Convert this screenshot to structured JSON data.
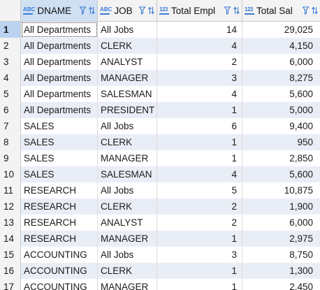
{
  "columns": {
    "dname": {
      "label": "DNAME",
      "type_badge": "ABC"
    },
    "job": {
      "label": "JOB",
      "type_badge": "ABC"
    },
    "total_emp": {
      "label": "Total Empl",
      "type_badge": "123"
    },
    "total_sal": {
      "label": "Total Sal",
      "type_badge": "123"
    }
  },
  "rows": [
    {
      "num": "1",
      "dname": "All Departments",
      "job": "All Jobs",
      "total_emp": "14",
      "total_sal": "29,025"
    },
    {
      "num": "2",
      "dname": "All Departments",
      "job": "CLERK",
      "total_emp": "4",
      "total_sal": "4,150"
    },
    {
      "num": "3",
      "dname": "All Departments",
      "job": "ANALYST",
      "total_emp": "2",
      "total_sal": "6,000"
    },
    {
      "num": "4",
      "dname": "All Departments",
      "job": "MANAGER",
      "total_emp": "3",
      "total_sal": "8,275"
    },
    {
      "num": "5",
      "dname": "All Departments",
      "job": "SALESMAN",
      "total_emp": "4",
      "total_sal": "5,600"
    },
    {
      "num": "6",
      "dname": "All Departments",
      "job": "PRESIDENT",
      "total_emp": "1",
      "total_sal": "5,000"
    },
    {
      "num": "7",
      "dname": "SALES",
      "job": "All Jobs",
      "total_emp": "6",
      "total_sal": "9,400"
    },
    {
      "num": "8",
      "dname": "SALES",
      "job": "CLERK",
      "total_emp": "1",
      "total_sal": "950"
    },
    {
      "num": "9",
      "dname": "SALES",
      "job": "MANAGER",
      "total_emp": "1",
      "total_sal": "2,850"
    },
    {
      "num": "10",
      "dname": "SALES",
      "job": "SALESMAN",
      "total_emp": "4",
      "total_sal": "5,600"
    },
    {
      "num": "11",
      "dname": "RESEARCH",
      "job": "All Jobs",
      "total_emp": "5",
      "total_sal": "10,875"
    },
    {
      "num": "12",
      "dname": "RESEARCH",
      "job": "CLERK",
      "total_emp": "2",
      "total_sal": "1,900"
    },
    {
      "num": "13",
      "dname": "RESEARCH",
      "job": "ANALYST",
      "total_emp": "2",
      "total_sal": "6,000"
    },
    {
      "num": "14",
      "dname": "RESEARCH",
      "job": "MANAGER",
      "total_emp": "1",
      "total_sal": "2,975"
    },
    {
      "num": "15",
      "dname": "ACCOUNTING",
      "job": "All Jobs",
      "total_emp": "3",
      "total_sal": "8,750"
    },
    {
      "num": "16",
      "dname": "ACCOUNTING",
      "job": "CLERK",
      "total_emp": "1",
      "total_sal": "1,300"
    },
    {
      "num": "17",
      "dname": "ACCOUNTING",
      "job": "MANAGER",
      "total_emp": "1",
      "total_sal": "2,450"
    }
  ],
  "selected_row": "1",
  "colors": {
    "accent": "#3a7bd5",
    "alt_row": "#e9eef6",
    "selected_header": "#cfe0f3"
  },
  "icons": {
    "text_type": "text-type-icon",
    "number_type": "number-type-icon",
    "filter": "filter-icon",
    "sort": "sort-icon"
  }
}
